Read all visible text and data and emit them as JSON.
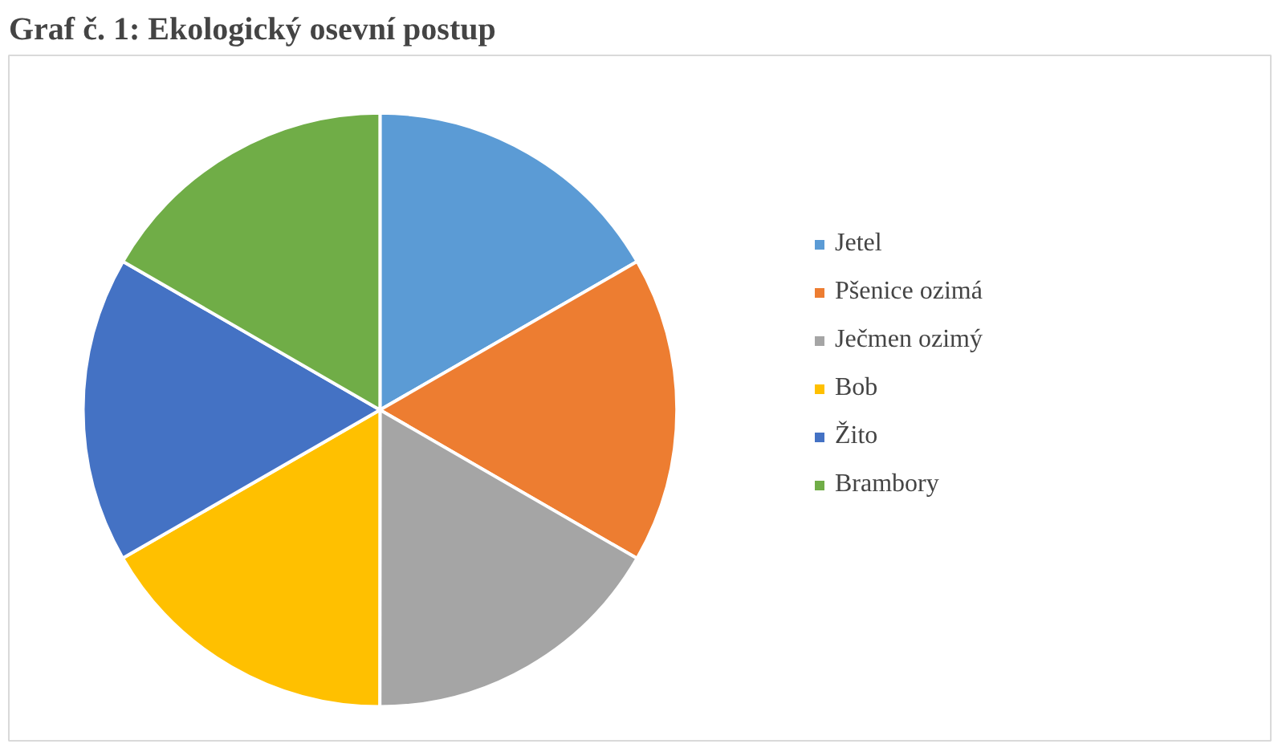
{
  "chart_data": {
    "type": "pie",
    "title": "Graf č. 1: Ekologický osevní postup",
    "categories": [
      "Jetel",
      "Pšenice ozimá",
      "Ječmen ozimý",
      "Bob",
      "Žito",
      "Brambory"
    ],
    "values": [
      16.67,
      16.67,
      16.67,
      16.67,
      16.66,
      16.66
    ],
    "colors": [
      "#5b9bd5",
      "#ed7d31",
      "#a5a5a5",
      "#ffc000",
      "#4472c4",
      "#70ad47"
    ],
    "legend": "right"
  }
}
